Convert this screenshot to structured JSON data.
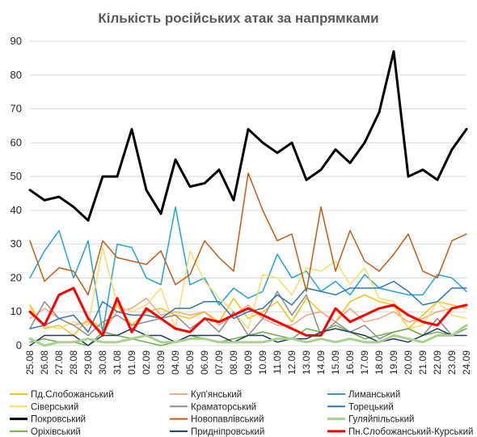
{
  "chart_data": {
    "type": "line",
    "title": "Кількість російських атак за напрямками",
    "xlabel": "",
    "ylabel": "",
    "ylim": [
      0,
      90
    ],
    "yticks": [
      0,
      10,
      20,
      30,
      40,
      50,
      60,
      70,
      80,
      90
    ],
    "grid": true,
    "legend_position": "bottom",
    "categories": [
      "25.08",
      "26.08",
      "27.08",
      "28.08",
      "29.08",
      "30.08",
      "31.08",
      "01.09",
      "02.09",
      "03.09",
      "04.09",
      "05.09",
      "06.09",
      "07.09",
      "08.09",
      "09.09",
      "10.09",
      "11.09",
      "12.09",
      "13.09",
      "14.09",
      "15.09",
      "16.09",
      "17.09",
      "18.09",
      "19.09",
      "20.09",
      "21.09",
      "22.09",
      "23.09",
      "24.09"
    ],
    "series": [
      {
        "name": "Пд.Слобожанський",
        "color": "#f2c20f",
        "width": 1.5,
        "values": [
          12,
          5,
          6,
          3,
          8,
          5,
          12,
          6,
          10,
          11,
          9,
          8,
          10,
          7,
          14,
          8,
          10,
          13,
          7,
          14,
          10,
          7,
          13,
          15,
          13,
          12,
          5,
          9,
          13,
          12,
          11
        ]
      },
      {
        "name": "Куп'янський",
        "color": "#f4a582",
        "width": 1.5,
        "values": [
          8,
          11,
          8,
          6,
          7,
          4,
          10,
          11,
          14,
          9,
          10,
          9,
          10,
          6,
          9,
          12,
          8,
          6,
          6,
          9,
          10,
          7,
          11,
          7,
          8,
          10,
          7,
          8,
          10,
          11,
          12
        ]
      },
      {
        "name": "Лиманський",
        "color": "#1aa6d6",
        "width": 1.5,
        "values": [
          20,
          28,
          34,
          20,
          31,
          4,
          30,
          29,
          20,
          18,
          41,
          18,
          20,
          12,
          17,
          14,
          16,
          27,
          20,
          22,
          16,
          19,
          15,
          21,
          17,
          16,
          15,
          15,
          21,
          20,
          16
        ]
      },
      {
        "name": "Сіверський",
        "color": "#ffd966",
        "width": 1.5,
        "values": [
          11,
          6,
          5,
          7,
          6,
          29,
          12,
          10,
          12,
          17,
          5,
          28,
          19,
          14,
          10,
          5,
          21,
          20,
          15,
          23,
          22,
          25,
          18,
          23,
          14,
          13,
          5,
          6,
          13,
          9,
          8
        ]
      },
      {
        "name": "Краматорський",
        "color": "#8c8c8c",
        "width": 1.5,
        "values": [
          5,
          13,
          8,
          6,
          3,
          7,
          9,
          6,
          7,
          8,
          9,
          5,
          8,
          4,
          10,
          3,
          8,
          16,
          9,
          15,
          3,
          7,
          4,
          6,
          2,
          4,
          5,
          3,
          8,
          3,
          6
        ]
      },
      {
        "name": "Торецький",
        "color": "#2e75b6",
        "width": 1.5,
        "values": [
          5,
          6,
          8,
          9,
          4,
          13,
          10,
          9,
          9,
          8,
          11,
          11,
          13,
          13,
          8,
          10,
          11,
          15,
          12,
          17,
          16,
          15,
          17,
          17,
          17,
          19,
          16,
          12,
          13,
          17,
          17
        ]
      },
      {
        "name": "Покровський",
        "color": "#000000",
        "width": 3,
        "values": [
          46,
          43,
          44,
          41,
          37,
          50,
          50,
          64,
          46,
          39,
          55,
          47,
          48,
          52,
          43,
          64,
          60,
          57,
          60,
          49,
          52,
          58,
          54,
          60,
          69,
          87,
          50,
          52,
          49,
          58,
          64
        ]
      },
      {
        "name": "Новопавлівський",
        "color": "#c55a11",
        "width": 1.5,
        "values": [
          31,
          19,
          23,
          22,
          15,
          31,
          26,
          25,
          24,
          28,
          18,
          21,
          31,
          26,
          22,
          51,
          40,
          31,
          33,
          16,
          41,
          22,
          34,
          25,
          22,
          27,
          33,
          22,
          20,
          31,
          33
        ]
      },
      {
        "name": "Гуляйпільський",
        "color": "#a9d18e",
        "width": 3,
        "values": [
          2,
          0,
          1,
          1,
          2,
          1,
          1,
          2,
          3,
          1,
          1,
          2,
          2,
          1,
          1,
          1,
          1,
          2,
          2,
          1,
          2,
          1,
          2,
          1,
          1,
          3,
          2,
          1,
          3,
          3,
          6
        ]
      },
      {
        "name": "Оріхівський",
        "color": "#70ad47",
        "width": 1.5,
        "values": [
          1,
          2,
          1,
          1,
          0,
          4,
          3,
          2,
          1,
          0,
          1,
          3,
          2,
          1,
          2,
          3,
          4,
          3,
          2,
          5,
          4,
          6,
          4,
          2,
          3,
          4,
          5,
          3,
          4,
          3,
          5
        ]
      },
      {
        "name": "Придніпровський",
        "color": "#1f3864",
        "width": 1.5,
        "values": [
          0,
          3,
          3,
          3,
          0,
          3,
          3,
          5,
          3,
          3,
          1,
          3,
          3,
          3,
          1,
          3,
          3,
          1,
          2,
          2,
          4,
          5,
          4,
          3,
          1,
          2,
          1,
          3,
          5,
          3,
          3
        ]
      },
      {
        "name": "Пн.Слобожанський-Курський",
        "color": "#ff0000",
        "width": 3,
        "values": [
          10,
          6,
          15,
          17,
          8,
          3,
          14,
          4,
          11,
          8,
          5,
          4,
          8,
          7,
          9,
          11,
          9,
          7,
          5,
          3,
          3,
          11,
          7,
          9,
          11,
          12,
          9,
          7,
          6,
          11,
          12
        ]
      }
    ]
  }
}
